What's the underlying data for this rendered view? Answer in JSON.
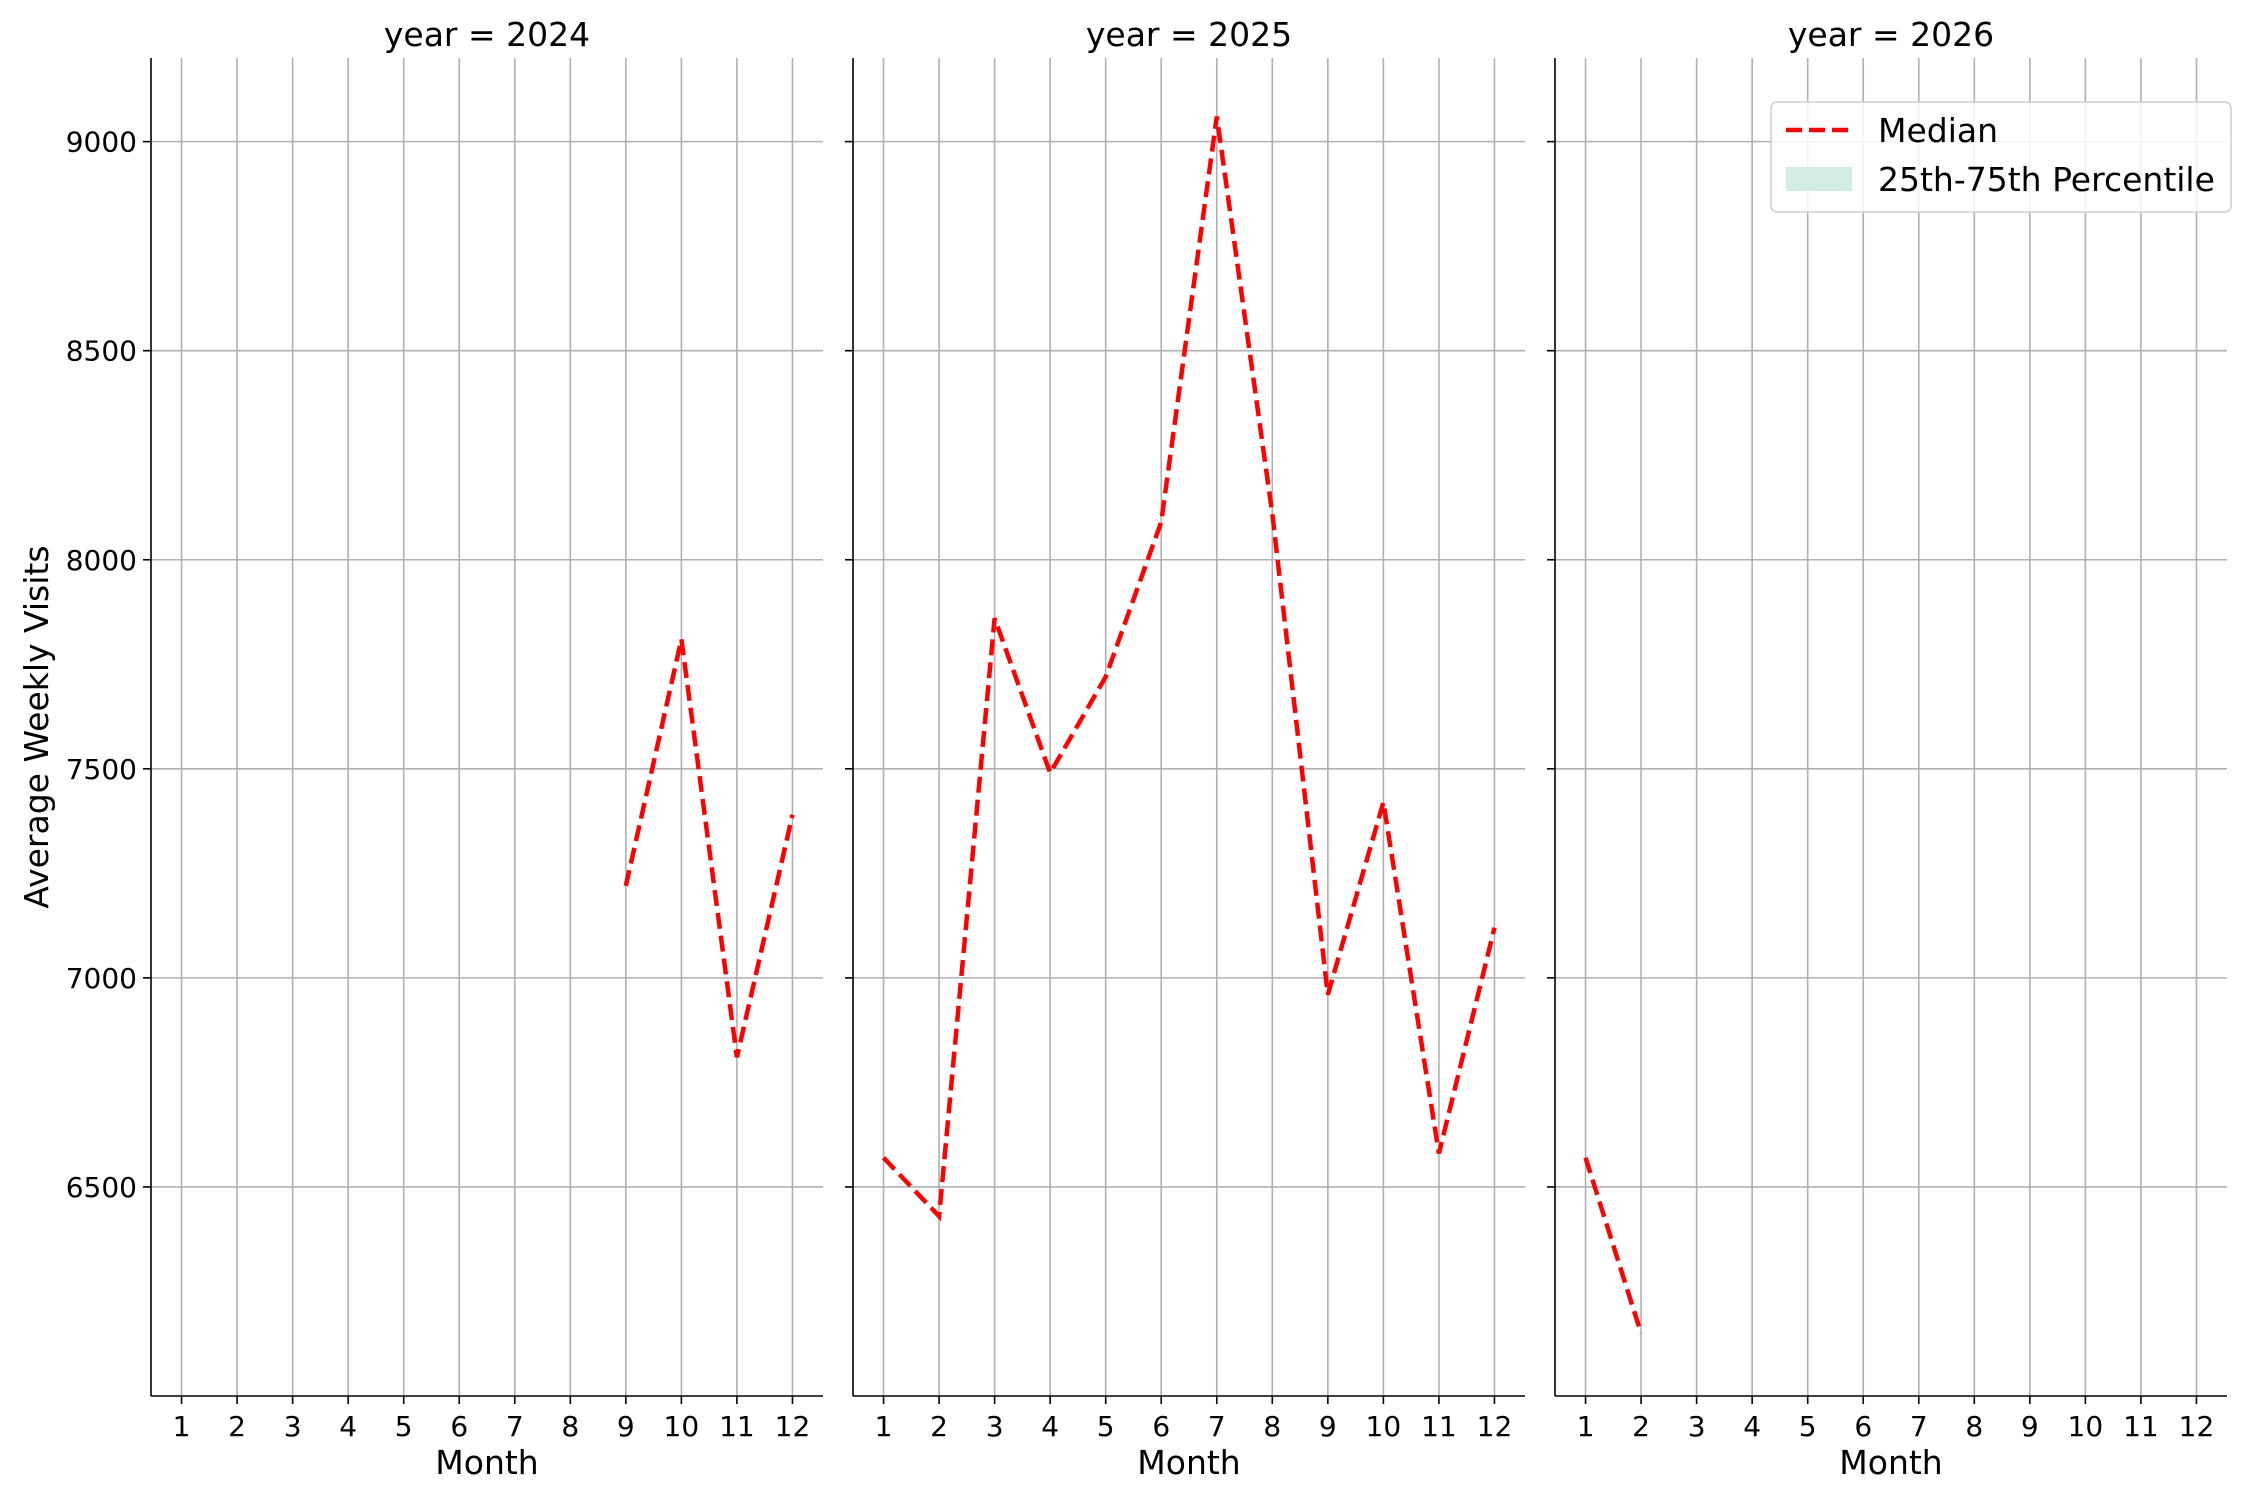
{
  "chart_data": {
    "type": "line",
    "ylabel": "Average Weekly Visits",
    "ylim": [
      6000,
      9200
    ],
    "yticks": [
      6500,
      7000,
      7500,
      8000,
      8500,
      9000
    ],
    "xlim": [
      0.45,
      12.55
    ],
    "grid": true,
    "legend": {
      "location": "top-right of last panel",
      "entries": [
        {
          "label": "Median",
          "style": "dashed-line",
          "color": "#ff0000"
        },
        {
          "label": "25th-75th Percentile",
          "style": "band",
          "color": "#d2ebe5"
        }
      ]
    },
    "colors": {
      "median": "#ff0000",
      "band": "#d2ebe5",
      "grid": "#b0b0b0"
    },
    "panels": [
      {
        "title": "year = 2024",
        "xlabel": "Month",
        "x": [
          1,
          2,
          3,
          4,
          5,
          6,
          7,
          8,
          9,
          10,
          11,
          12
        ],
        "series": [
          {
            "name": "Median",
            "x": [
              9,
              10,
              11,
              12
            ],
            "values": [
              7220,
              7810,
              6810,
              7390
            ]
          }
        ]
      },
      {
        "title": "year = 2025",
        "xlabel": "Month",
        "x": [
          1,
          2,
          3,
          4,
          5,
          6,
          7,
          8,
          9,
          10,
          11,
          12
        ],
        "series": [
          {
            "name": "Median",
            "x": [
              1,
              2,
              3,
              4,
              5,
              6,
              7,
              8,
              9,
              10,
              11,
              12
            ],
            "values": [
              6570,
              6430,
              7860,
              7490,
              7720,
              8090,
              9060,
              8110,
              6960,
              7420,
              6580,
              7120
            ]
          }
        ]
      },
      {
        "title": "year = 2026",
        "xlabel": "Month",
        "x": [
          1,
          2,
          3,
          4,
          5,
          6,
          7,
          8,
          9,
          10,
          11,
          12
        ],
        "series": [
          {
            "name": "Median",
            "x": [
              1,
              2
            ],
            "values": [
              6570,
              6150
            ]
          }
        ]
      }
    ]
  }
}
